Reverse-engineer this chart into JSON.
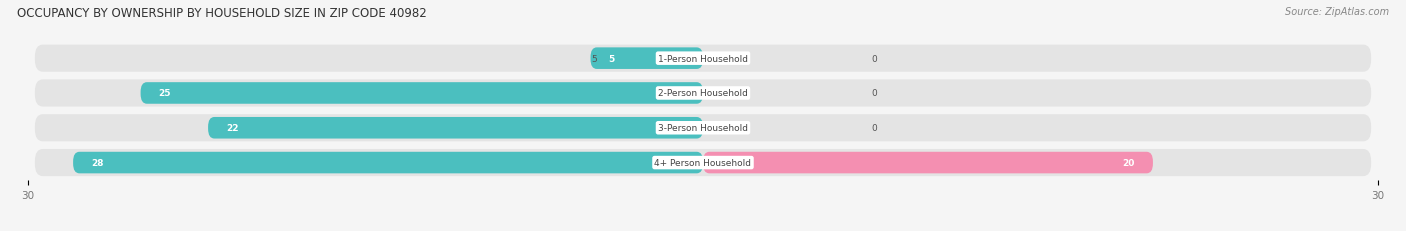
{
  "title": "OCCUPANCY BY OWNERSHIP BY HOUSEHOLD SIZE IN ZIP CODE 40982",
  "source": "Source: ZipAtlas.com",
  "categories": [
    "1-Person Household",
    "2-Person Household",
    "3-Person Household",
    "4+ Person Household"
  ],
  "owner_values": [
    5,
    25,
    22,
    28
  ],
  "renter_values": [
    0,
    0,
    0,
    20
  ],
  "owner_color": "#4BBFBF",
  "renter_color": "#F48FB1",
  "xlim_data": 30,
  "bar_height": 0.62,
  "row_bg_color": "#e8e8e8",
  "background_color": "#f5f5f5",
  "title_fontsize": 8.5,
  "source_fontsize": 7,
  "tick_fontsize": 7.5,
  "legend_fontsize": 7,
  "value_fontsize": 6.5,
  "category_fontsize": 6.5
}
